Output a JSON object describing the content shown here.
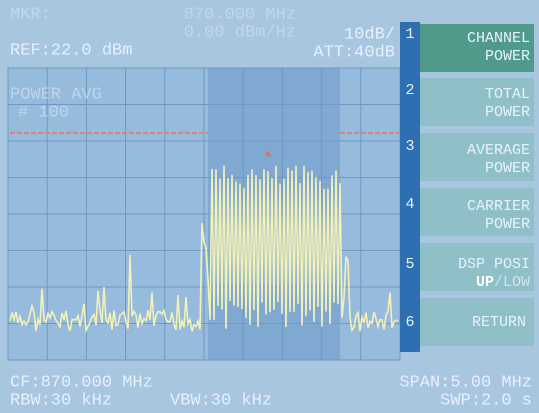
{
  "marker": {
    "label": "MKR:",
    "frequency": "870.000 MHz",
    "level": "0.00 dBm/Hz"
  },
  "reference": {
    "level": "REF:22.0 dBm",
    "scale": "10dB/",
    "attenuation": "ATT:40dB"
  },
  "detector": {
    "mode": "POWER AVG",
    "count": "# 100"
  },
  "softkeys": [
    {
      "number": "1",
      "line1": "CHANNEL",
      "line2": "POWER"
    },
    {
      "number": "2",
      "line1": "TOTAL",
      "line2": "POWER"
    },
    {
      "number": "3",
      "line1": "AVERAGE",
      "line2": "POWER"
    },
    {
      "number": "4",
      "line1": "CARRIER",
      "line2": "POWER"
    },
    {
      "number": "5",
      "line1": "DSP POSI",
      "line2_active": "UP",
      "line2_inactive": "/LOW"
    },
    {
      "number": "6",
      "line1": "RETURN"
    }
  ],
  "footer": {
    "center": "CF:870.000 MHz",
    "span": "SPAN:5.00 MHz",
    "rbw": "RBW:30 kHz",
    "vbw": "VBW:30 kHz",
    "sweep": "SWP:2.0 s"
  }
}
